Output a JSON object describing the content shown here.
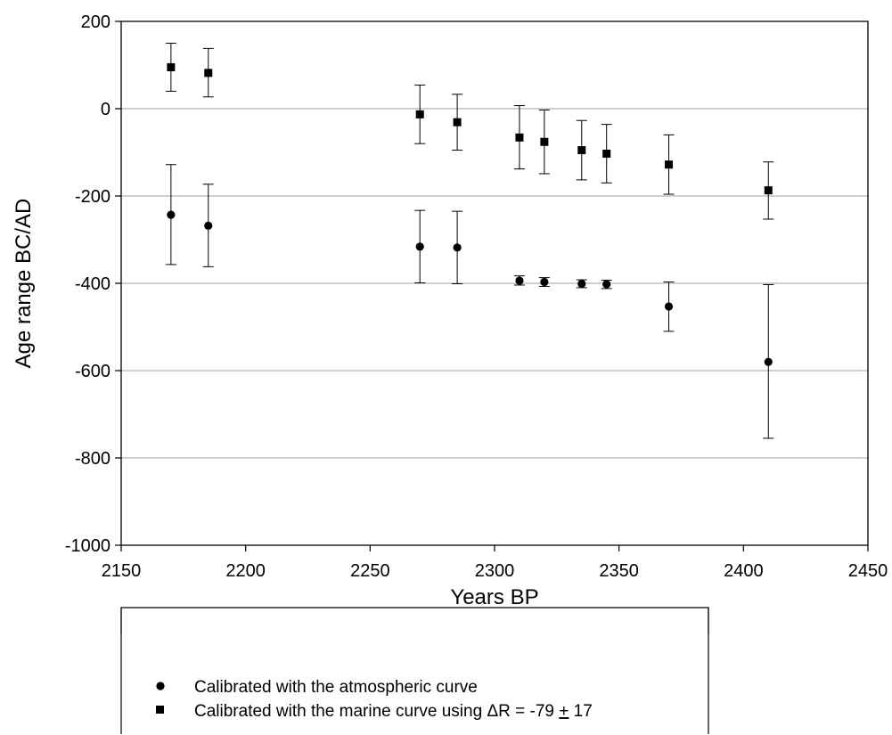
{
  "chart_data": {
    "type": "scatter",
    "xlabel": "Years BP",
    "ylabel": "Age range BC/AD",
    "xlim": [
      2150,
      2450
    ],
    "ylim": [
      -1000,
      200
    ],
    "x_ticks": [
      2150,
      2200,
      2250,
      2300,
      2350,
      2400,
      2450
    ],
    "y_ticks": [
      -1000,
      -800,
      -600,
      -400,
      -200,
      0,
      200
    ],
    "grid": "horizontal",
    "legend_position": "bottom",
    "series": [
      {
        "name": "Calibrated with the atmospheric curve",
        "marker": "circle",
        "color": "#000000",
        "points": [
          {
            "x": 2170,
            "y": -243,
            "low": -357,
            "high": -128
          },
          {
            "x": 2185,
            "y": -268,
            "low": -362,
            "high": -173
          },
          {
            "x": 2270,
            "y": -316,
            "low": -399,
            "high": -233
          },
          {
            "x": 2285,
            "y": -318,
            "low": -401,
            "high": -235
          },
          {
            "x": 2310,
            "y": -394,
            "low": -404,
            "high": -383
          },
          {
            "x": 2320,
            "y": -397,
            "low": -407,
            "high": -387
          },
          {
            "x": 2335,
            "y": -401,
            "low": -410,
            "high": -392
          },
          {
            "x": 2345,
            "y": -402,
            "low": -412,
            "high": -393
          },
          {
            "x": 2370,
            "y": -453,
            "low": -510,
            "high": -397
          },
          {
            "x": 2410,
            "y": -580,
            "low": -755,
            "high": -403
          }
        ]
      },
      {
        "name_prefix": "Calibrated with the marine curve using ",
        "name_delta": "ΔR",
        "name_equals": " = -79 ",
        "name_pm": "+",
        "name_suffix": " 17",
        "marker": "square",
        "color": "#000000",
        "points": [
          {
            "x": 2170,
            "y": 95,
            "low": 40,
            "high": 150
          },
          {
            "x": 2185,
            "y": 82,
            "low": 27,
            "high": 138
          },
          {
            "x": 2270,
            "y": -13,
            "low": -80,
            "high": 54
          },
          {
            "x": 2285,
            "y": -31,
            "low": -95,
            "high": 33
          },
          {
            "x": 2310,
            "y": -66,
            "low": -138,
            "high": 7
          },
          {
            "x": 2320,
            "y": -76,
            "low": -149,
            "high": -3
          },
          {
            "x": 2335,
            "y": -95,
            "low": -163,
            "high": -27
          },
          {
            "x": 2345,
            "y": -103,
            "low": -170,
            "high": -36
          },
          {
            "x": 2370,
            "y": -128,
            "low": -196,
            "high": -60
          },
          {
            "x": 2410,
            "y": -187,
            "low": -253,
            "high": -122
          }
        ]
      }
    ]
  },
  "legend": {
    "item1": "Calibrated with the atmospheric curve",
    "item2_prefix": "Calibrated with the marine curve using ",
    "item2_delta": "ΔR",
    "item2_equals": " = -79 ",
    "item2_pm": "+",
    "item2_suffix": " 17"
  }
}
